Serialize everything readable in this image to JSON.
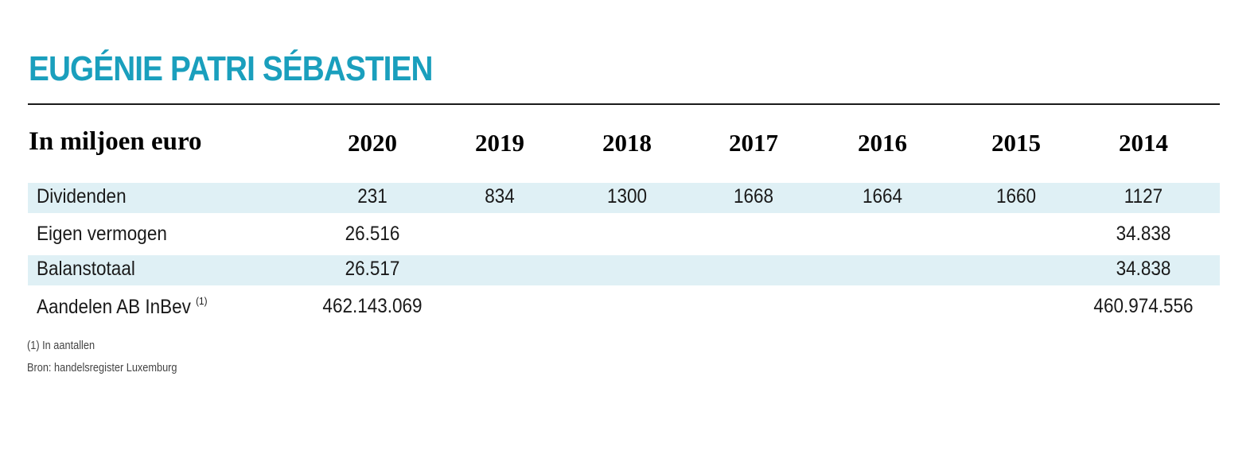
{
  "colors": {
    "accent": "#1a9fbd",
    "row_shade": "#dff0f5",
    "text": "#1a1a1a"
  },
  "chart_data": {
    "type": "table",
    "title": "EUGÉNIE PATRI SÉBASTIEN",
    "unit_label": "In miljoen euro",
    "years": [
      "2020",
      "2019",
      "2018",
      "2017",
      "2016",
      "2015",
      "2014"
    ],
    "rows": [
      {
        "label": "Dividenden",
        "footnote": "",
        "values": [
          "231",
          "834",
          "1300",
          "1668",
          "1664",
          "1660",
          "1127"
        ]
      },
      {
        "label": "Eigen vermogen",
        "footnote": "",
        "values": [
          "26.516",
          "",
          "",
          "",
          "",
          "",
          "34.838"
        ]
      },
      {
        "label": "Balanstotaal",
        "footnote": "",
        "values": [
          "26.517",
          "",
          "",
          "",
          "",
          "",
          "34.838"
        ]
      },
      {
        "label": "Aandelen AB InBev",
        "footnote": "(1)",
        "values": [
          "462.143.069",
          "",
          "",
          "",
          "",
          "",
          "460.974.556"
        ]
      }
    ],
    "notes": [
      "(1) In aantallen",
      "Bron: handelsregister Luxemburg"
    ]
  }
}
